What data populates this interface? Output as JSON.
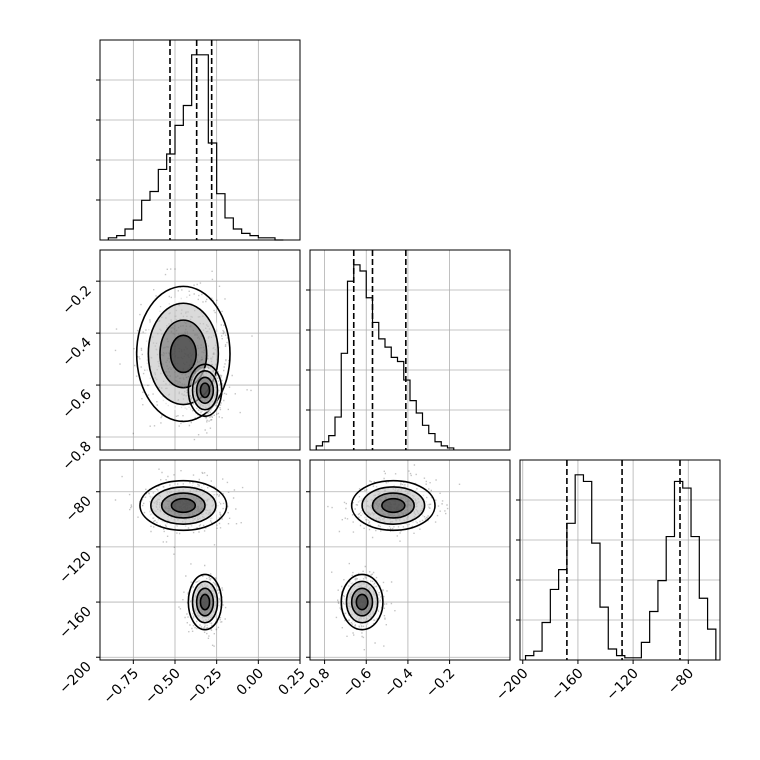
{
  "chart_data": [
    {
      "panel": "hist-param-1",
      "type": "histogram",
      "x_range": [
        -0.95,
        0.25
      ],
      "x_ticks": [
        -0.75,
        -0.5,
        -0.25,
        0.0,
        0.25
      ],
      "bin_edges": [
        -0.9,
        -0.85,
        -0.8,
        -0.75,
        -0.7,
        -0.65,
        -0.6,
        -0.55,
        -0.5,
        -0.45,
        -0.4,
        -0.35,
        -0.3,
        -0.25,
        -0.2,
        -0.15,
        -0.1,
        -0.05,
        0.0,
        0.05,
        0.1,
        0.15
      ],
      "counts": [
        1,
        2,
        5,
        9,
        18,
        22,
        32,
        39,
        52,
        61,
        84,
        84,
        44,
        21,
        10,
        5,
        3,
        2,
        1,
        1,
        0
      ],
      "quantiles": [
        -0.53,
        -0.37,
        -0.28
      ]
    },
    {
      "panel": "hist-param-2",
      "type": "histogram",
      "x_range": [
        -0.87,
        0.09
      ],
      "x_ticks": [
        -0.8,
        -0.6,
        -0.4,
        -0.2
      ],
      "x_tick_labels": [
        "−0.8",
        "−0.6",
        "−0.4",
        "−0.2"
      ],
      "bin_edges": [
        -0.84,
        -0.81,
        -0.78,
        -0.75,
        -0.72,
        -0.69,
        -0.66,
        -0.63,
        -0.6,
        -0.57,
        -0.54,
        -0.51,
        -0.48,
        -0.45,
        -0.42,
        -0.39,
        -0.36,
        -0.33,
        -0.3,
        -0.27,
        -0.24,
        -0.21,
        -0.18
      ],
      "counts": [
        2,
        4,
        7,
        16,
        47,
        82,
        90,
        87,
        74,
        62,
        54,
        50,
        45,
        43,
        34,
        24,
        18,
        12,
        8,
        4,
        2,
        1
      ],
      "quantiles": [
        -0.66,
        -0.57,
        -0.41
      ]
    },
    {
      "panel": "hist-param-3",
      "type": "histogram",
      "x_range": [
        -202,
        -57
      ],
      "x_ticks": [
        -200,
        -160,
        -120,
        -80
      ],
      "x_tick_labels": [
        "−200",
        "−160",
        "−120",
        "−80"
      ],
      "bin_edges": [
        -198,
        -192,
        -186,
        -180,
        -174,
        -168,
        -162,
        -156,
        -150,
        -144,
        -138,
        -132,
        -126,
        -120,
        -114,
        -108,
        -102,
        -96,
        -90,
        -84,
        -78,
        -72,
        -66,
        -60
      ],
      "counts": [
        2,
        4,
        17,
        32,
        41,
        62,
        84,
        81,
        53,
        24,
        5,
        2,
        1,
        1,
        8,
        22,
        36,
        56,
        81,
        78,
        56,
        28,
        14
      ],
      "quantiles": [
        -168,
        -128,
        -86
      ]
    },
    {
      "panel": "scatter-p2-vs-p1",
      "type": "scatter",
      "x_range": [
        -0.95,
        0.25
      ],
      "y_range": [
        -0.85,
        -0.08
      ],
      "y_ticks": [
        -0.2,
        -0.4,
        -0.6,
        -0.8
      ],
      "y_tick_labels": [
        "−0.2",
        "−0.4",
        "−0.6",
        "−0.8"
      ],
      "clusters": [
        {
          "x": -0.45,
          "y": -0.48,
          "sx": 0.14,
          "sy": 0.13
        },
        {
          "x": -0.32,
          "y": -0.62,
          "sx": 0.05,
          "sy": 0.05
        }
      ]
    },
    {
      "panel": "scatter-p3-vs-p1",
      "type": "scatter",
      "x_range": [
        -0.95,
        0.25
      ],
      "y_range": [
        -202,
        -57
      ],
      "y_ticks": [
        -80,
        -120,
        -160,
        -200
      ],
      "y_tick_labels": [
        "−80",
        "−120",
        "−160",
        "−200"
      ],
      "x_tick_labels": [
        "−0.75",
        "−0.50",
        "−0.25",
        "0.00",
        "0.25"
      ],
      "clusters": [
        {
          "x": -0.45,
          "y": -90,
          "sx": 0.13,
          "sy": 9
        },
        {
          "x": -0.32,
          "y": -160,
          "sx": 0.05,
          "sy": 10
        }
      ]
    },
    {
      "panel": "scatter-p3-vs-p2",
      "type": "scatter",
      "x_range": [
        -0.87,
        0.09
      ],
      "y_range": [
        -202,
        -57
      ],
      "clusters": [
        {
          "x": -0.47,
          "y": -90,
          "sx": 0.1,
          "sy": 9
        },
        {
          "x": -0.62,
          "y": -160,
          "sx": 0.05,
          "sy": 10
        }
      ]
    }
  ]
}
